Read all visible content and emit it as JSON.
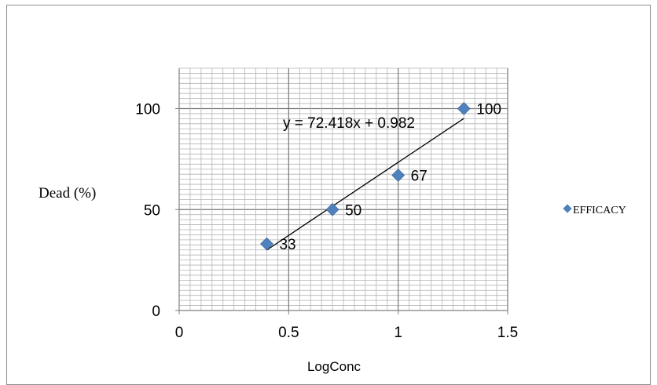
{
  "chart_data": {
    "type": "scatter",
    "xlabel": "LogConc",
    "ylabel": "Dead (%)",
    "xlim": [
      0,
      1.5
    ],
    "ylim": [
      0,
      120
    ],
    "x_ticks": [
      "0",
      "0.5",
      "1",
      "1.5"
    ],
    "y_ticks": [
      "0",
      "50",
      "100"
    ],
    "grid": true,
    "legend_position": "right",
    "series": [
      {
        "name": "EFFICACY",
        "color": "#4f81bd",
        "x": [
          0.4,
          0.7,
          1.0,
          1.3
        ],
        "y": [
          33,
          50,
          67,
          100
        ],
        "labels": [
          "33",
          "50",
          "67",
          "100"
        ]
      }
    ],
    "trendline": {
      "type": "linear",
      "slope": 72.418,
      "intercept": 0.982,
      "equation": "y = 72.418x + 0.982",
      "x_range": [
        0.4,
        1.3
      ]
    }
  }
}
